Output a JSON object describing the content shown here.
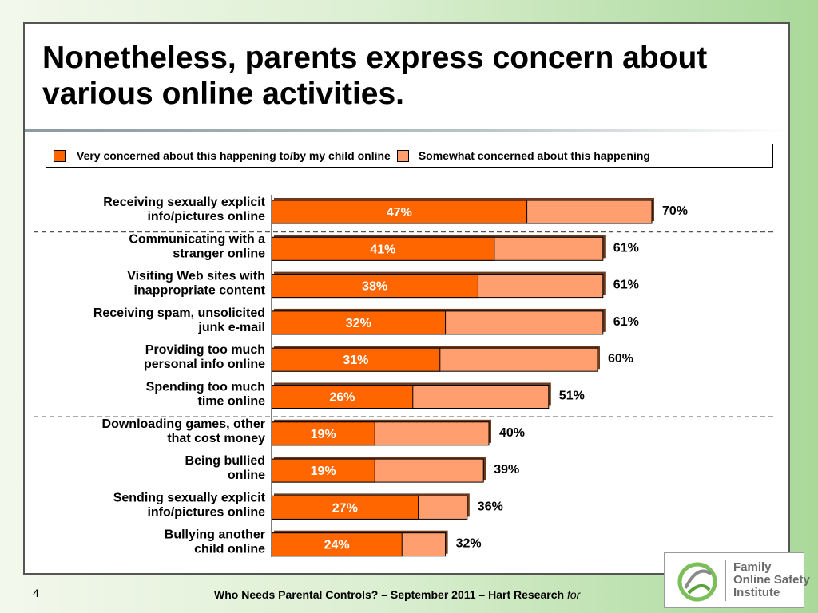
{
  "slide": {
    "title": "Nonetheless, parents express concern about various online activities.",
    "page_number": "4",
    "footer_text": "Who Needs Parental Controls? – September 2011 – Hart Research",
    "footer_italic": "for",
    "logo_lines": [
      "Family",
      "Online Safety",
      "Institute"
    ]
  },
  "legend": {
    "very_label": "Very concerned about this happening to/by my child online",
    "somewhat_label": "Somewhat concerned about this happening"
  },
  "colors": {
    "very": "#ff6600",
    "somewhat": "#ff9e6e",
    "bar_shadow": "#6b3a1f"
  },
  "chart_data": {
    "type": "bar",
    "orientation": "horizontal",
    "stacked": true,
    "title": "",
    "xlim": [
      0,
      100
    ],
    "legend_position": "top",
    "categories": [
      [
        "Receiving sexually explicit",
        "info/pictures online"
      ],
      [
        "Communicating with a",
        "stranger online"
      ],
      [
        "Visiting Web sites with",
        "inappropriate content"
      ],
      [
        "Receiving spam, unsolicited",
        "junk e-mail"
      ],
      [
        "Providing too much",
        "personal info online"
      ],
      [
        "Spending too much",
        "time online"
      ],
      [
        "Downloading games, other",
        "that cost money"
      ],
      [
        "Being bullied",
        "online"
      ],
      [
        "Sending sexually explicit",
        "info/pictures online"
      ],
      [
        "Bullying another",
        "child online"
      ]
    ],
    "series": [
      {
        "name": "Very concerned about this happening to/by my child online",
        "values": [
          47,
          41,
          38,
          32,
          31,
          26,
          19,
          19,
          27,
          24
        ],
        "labels": [
          "47%",
          "41%",
          "38%",
          "32%",
          "31%",
          "26%",
          "19%",
          "19%",
          "27%",
          "24%"
        ]
      }
    ],
    "totals": [
      70,
      61,
      61,
      61,
      60,
      51,
      40,
      39,
      36,
      32
    ],
    "total_labels": [
      "70%",
      "61%",
      "61%",
      "61%",
      "60%",
      "51%",
      "40%",
      "39%",
      "36%",
      "32%"
    ],
    "group_dividers_after": [
      0,
      5
    ]
  }
}
